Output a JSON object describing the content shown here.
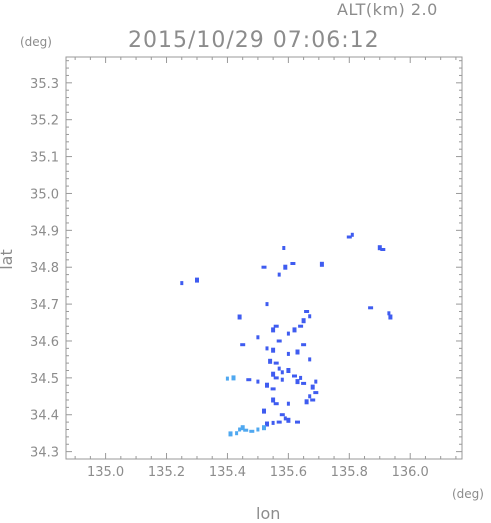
{
  "header": {
    "alt_label": "ALT(km)  2.0",
    "timestamp": "2015/10/29 07:06:12"
  },
  "chart_data": {
    "type": "scatter",
    "title": "2015/10/29 07:06:12",
    "xlabel": "lon",
    "ylabel": "lat",
    "x_unit": "(deg)",
    "y_unit": "(deg)",
    "xlim": [
      134.87,
      136.17
    ],
    "ylim": [
      34.28,
      35.37
    ],
    "x_ticks": [
      135.0,
      135.2,
      135.4,
      135.6,
      135.8,
      136.0
    ],
    "x_tick_labels": [
      "135.0",
      "135.2",
      "135.4",
      "135.6",
      "135.8",
      "136.0"
    ],
    "y_ticks": [
      34.3,
      34.4,
      34.5,
      34.6,
      34.7,
      34.8,
      34.9,
      35.0,
      35.1,
      35.2,
      35.3
    ],
    "y_tick_labels": [
      "34.3",
      "34.4",
      "34.5",
      "34.6",
      "34.7",
      "34.8",
      "34.9",
      "35.0",
      "35.1",
      "35.2",
      "35.3"
    ],
    "grid": false,
    "colors": {
      "weak": "#3f5cf0",
      "strong": "#4fa8f0",
      "frame": "#999999"
    },
    "points": [
      {
        "lon": 135.25,
        "lat": 34.757
      },
      {
        "lon": 135.3,
        "lat": 34.765
      },
      {
        "lon": 135.52,
        "lat": 34.8
      },
      {
        "lon": 135.585,
        "lat": 34.852
      },
      {
        "lon": 135.59,
        "lat": 34.8
      },
      {
        "lon": 135.615,
        "lat": 34.81
      },
      {
        "lon": 135.57,
        "lat": 34.78
      },
      {
        "lon": 135.71,
        "lat": 34.808
      },
      {
        "lon": 135.8,
        "lat": 34.882
      },
      {
        "lon": 135.81,
        "lat": 34.888
      },
      {
        "lon": 135.9,
        "lat": 34.853
      },
      {
        "lon": 135.91,
        "lat": 34.848
      },
      {
        "lon": 135.93,
        "lat": 34.675
      },
      {
        "lon": 135.935,
        "lat": 34.665
      },
      {
        "lon": 135.87,
        "lat": 34.69
      },
      {
        "lon": 135.53,
        "lat": 34.7
      },
      {
        "lon": 135.44,
        "lat": 34.665
      },
      {
        "lon": 135.66,
        "lat": 34.68
      },
      {
        "lon": 135.67,
        "lat": 34.667
      },
      {
        "lon": 135.65,
        "lat": 34.655
      },
      {
        "lon": 135.45,
        "lat": 34.59
      },
      {
        "lon": 135.5,
        "lat": 34.61
      },
      {
        "lon": 135.55,
        "lat": 34.63
      },
      {
        "lon": 135.56,
        "lat": 34.64
      },
      {
        "lon": 135.6,
        "lat": 34.62
      },
      {
        "lon": 135.62,
        "lat": 34.63
      },
      {
        "lon": 135.64,
        "lat": 34.64
      },
      {
        "lon": 135.53,
        "lat": 34.58
      },
      {
        "lon": 135.55,
        "lat": 34.575
      },
      {
        "lon": 135.57,
        "lat": 34.6
      },
      {
        "lon": 135.6,
        "lat": 34.565
      },
      {
        "lon": 135.63,
        "lat": 34.57
      },
      {
        "lon": 135.65,
        "lat": 34.59
      },
      {
        "lon": 135.67,
        "lat": 34.55
      },
      {
        "lon": 135.54,
        "lat": 34.545
      },
      {
        "lon": 135.56,
        "lat": 34.54
      },
      {
        "lon": 135.57,
        "lat": 34.525
      },
      {
        "lon": 135.55,
        "lat": 34.51
      },
      {
        "lon": 135.56,
        "lat": 34.5
      },
      {
        "lon": 135.58,
        "lat": 34.495
      },
      {
        "lon": 135.53,
        "lat": 34.48
      },
      {
        "lon": 135.55,
        "lat": 34.47
      },
      {
        "lon": 135.58,
        "lat": 34.515
      },
      {
        "lon": 135.6,
        "lat": 34.52
      },
      {
        "lon": 135.62,
        "lat": 34.505
      },
      {
        "lon": 135.64,
        "lat": 34.5
      },
      {
        "lon": 135.63,
        "lat": 34.49
      },
      {
        "lon": 135.65,
        "lat": 34.485
      },
      {
        "lon": 135.69,
        "lat": 34.49
      },
      {
        "lon": 135.68,
        "lat": 34.475
      },
      {
        "lon": 135.69,
        "lat": 34.46
      },
      {
        "lon": 135.67,
        "lat": 34.45
      },
      {
        "lon": 135.66,
        "lat": 34.435
      },
      {
        "lon": 135.68,
        "lat": 34.44
      },
      {
        "lon": 135.4,
        "lat": 34.498
      },
      {
        "lon": 135.42,
        "lat": 34.5
      },
      {
        "lon": 135.47,
        "lat": 34.495
      },
      {
        "lon": 135.5,
        "lat": 34.49
      },
      {
        "lon": 135.55,
        "lat": 34.44
      },
      {
        "lon": 135.56,
        "lat": 34.43
      },
      {
        "lon": 135.6,
        "lat": 34.43
      },
      {
        "lon": 135.52,
        "lat": 34.41
      },
      {
        "lon": 135.58,
        "lat": 34.4
      },
      {
        "lon": 135.59,
        "lat": 34.39
      },
      {
        "lon": 135.6,
        "lat": 34.385
      },
      {
        "lon": 135.57,
        "lat": 34.38
      },
      {
        "lon": 135.55,
        "lat": 34.378
      },
      {
        "lon": 135.53,
        "lat": 34.375
      },
      {
        "lon": 135.63,
        "lat": 34.38
      },
      {
        "lon": 135.44,
        "lat": 34.36
      },
      {
        "lon": 135.45,
        "lat": 34.365
      },
      {
        "lon": 135.46,
        "lat": 34.358
      },
      {
        "lon": 135.43,
        "lat": 34.35
      },
      {
        "lon": 135.41,
        "lat": 34.348
      },
      {
        "lon": 135.48,
        "lat": 34.355
      },
      {
        "lon": 135.5,
        "lat": 34.36
      },
      {
        "lon": 135.52,
        "lat": 34.365
      }
    ]
  }
}
